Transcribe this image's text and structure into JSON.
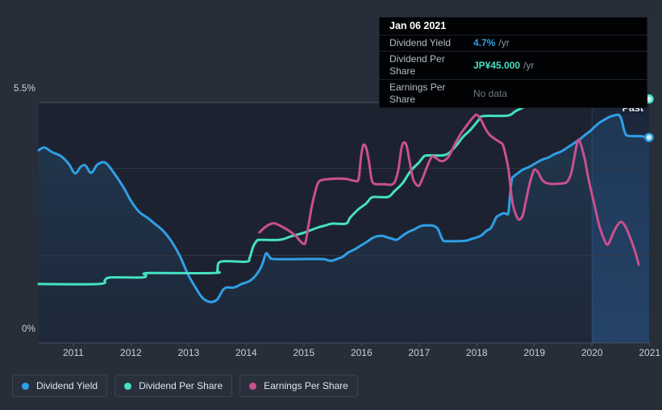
{
  "axis": {
    "y_max_label": "5.5%",
    "y_min_label": "0%",
    "x_tick_labels": [
      "2011",
      "2012",
      "2013",
      "2014",
      "2015",
      "2016",
      "2017",
      "2018",
      "2019",
      "2020",
      "2021"
    ]
  },
  "past_label": "Past",
  "header_tooltip": {
    "date": "Jan 06 2021",
    "rows": [
      {
        "label": "Dividend Yield",
        "value": "4.7%",
        "suffix": "/yr",
        "value_color": "#2f9fe6",
        "bold": true
      },
      {
        "label": "Dividend Per Share",
        "value": "JP¥45.000",
        "suffix": "/yr",
        "value_color": "#45e1c2",
        "bold": true
      },
      {
        "label": "Earnings Per Share",
        "value": "No data",
        "suffix": "",
        "value_color": "#70767e",
        "bold": false
      }
    ]
  },
  "legend": [
    {
      "label": "Dividend Yield",
      "color": "#2f9fe6"
    },
    {
      "label": "Dividend Per Share",
      "color": "#45e1c2"
    },
    {
      "label": "Earnings Per Share",
      "color": "#c9508f"
    }
  ],
  "colors": {
    "page_bg": "#272d39",
    "plot_bg": "#1d2230",
    "grid_minor": "#2f3644",
    "grid_major": "#4a5263",
    "axis_line": "#464e5e",
    "tick": "#4a5160",
    "tick_label": "#cbd0d8",
    "blue": "#2f9fe6",
    "teal": "#45e1c2",
    "pink": "#c9508f"
  },
  "chart_data": {
    "type": "line",
    "x_min": 2010.4,
    "x_max": 2020.99,
    "ylim": [
      0,
      5.5
    ],
    "y_unit": "percent (dividend yield axis)",
    "y_gridlines": [
      0,
      2,
      4,
      5.5
    ],
    "y_tick_labels": [
      "0%",
      "5.5%"
    ],
    "x_ticks": [
      2011,
      2012,
      2013,
      2014,
      2015,
      2016,
      2017,
      2018,
      2019,
      2020,
      2021
    ],
    "legend_position": "bottom-left",
    "past_from": 2020.0,
    "series": [
      {
        "name": "Dividend Yield",
        "color": "#2f9fe6",
        "fill": true,
        "end_marker": true,
        "points": [
          [
            2010.4,
            4.41
          ],
          [
            2010.5,
            4.47
          ],
          [
            2010.64,
            4.36
          ],
          [
            2010.78,
            4.28
          ],
          [
            2010.92,
            4.1
          ],
          [
            2011.03,
            3.88
          ],
          [
            2011.13,
            4.03
          ],
          [
            2011.21,
            4.06
          ],
          [
            2011.31,
            3.89
          ],
          [
            2011.42,
            4.08
          ],
          [
            2011.56,
            4.12
          ],
          [
            2011.73,
            3.84
          ],
          [
            2011.87,
            3.56
          ],
          [
            2012.01,
            3.23
          ],
          [
            2012.15,
            2.99
          ],
          [
            2012.29,
            2.86
          ],
          [
            2012.43,
            2.71
          ],
          [
            2012.57,
            2.55
          ],
          [
            2012.71,
            2.31
          ],
          [
            2012.85,
            1.99
          ],
          [
            2012.99,
            1.57
          ],
          [
            2013.13,
            1.25
          ],
          [
            2013.23,
            1.05
          ],
          [
            2013.32,
            0.96
          ],
          [
            2013.41,
            0.94
          ],
          [
            2013.5,
            1.0
          ],
          [
            2013.59,
            1.2
          ],
          [
            2013.66,
            1.27
          ],
          [
            2013.79,
            1.27
          ],
          [
            2013.92,
            1.35
          ],
          [
            2014.06,
            1.42
          ],
          [
            2014.18,
            1.57
          ],
          [
            2014.27,
            1.77
          ],
          [
            2014.33,
            2.01
          ],
          [
            2014.36,
            2.05
          ],
          [
            2014.41,
            1.96
          ],
          [
            2014.48,
            1.92
          ],
          [
            2014.9,
            1.92
          ],
          [
            2015.32,
            1.92
          ],
          [
            2015.42,
            1.89
          ],
          [
            2015.49,
            1.88
          ],
          [
            2015.57,
            1.92
          ],
          [
            2015.67,
            1.97
          ],
          [
            2015.77,
            2.07
          ],
          [
            2015.88,
            2.14
          ],
          [
            2015.99,
            2.23
          ],
          [
            2016.09,
            2.31
          ],
          [
            2016.19,
            2.4
          ],
          [
            2016.27,
            2.44
          ],
          [
            2016.36,
            2.45
          ],
          [
            2016.44,
            2.42
          ],
          [
            2016.54,
            2.38
          ],
          [
            2016.61,
            2.36
          ],
          [
            2016.68,
            2.42
          ],
          [
            2016.75,
            2.49
          ],
          [
            2016.83,
            2.55
          ],
          [
            2016.92,
            2.6
          ],
          [
            2017.0,
            2.66
          ],
          [
            2017.08,
            2.69
          ],
          [
            2017.17,
            2.69
          ],
          [
            2017.25,
            2.68
          ],
          [
            2017.32,
            2.62
          ],
          [
            2017.37,
            2.47
          ],
          [
            2017.41,
            2.36
          ],
          [
            2017.45,
            2.33
          ],
          [
            2017.63,
            2.33
          ],
          [
            2017.81,
            2.34
          ],
          [
            2017.91,
            2.38
          ],
          [
            2018.01,
            2.42
          ],
          [
            2018.09,
            2.47
          ],
          [
            2018.17,
            2.57
          ],
          [
            2018.24,
            2.62
          ],
          [
            2018.3,
            2.77
          ],
          [
            2018.34,
            2.88
          ],
          [
            2018.4,
            2.93
          ],
          [
            2018.47,
            2.97
          ],
          [
            2018.52,
            2.95
          ],
          [
            2018.55,
            2.99
          ],
          [
            2018.58,
            3.41
          ],
          [
            2018.61,
            3.75
          ],
          [
            2018.65,
            3.82
          ],
          [
            2018.71,
            3.88
          ],
          [
            2018.78,
            3.95
          ],
          [
            2018.85,
            3.99
          ],
          [
            2018.93,
            4.04
          ],
          [
            2019.03,
            4.12
          ],
          [
            2019.13,
            4.19
          ],
          [
            2019.24,
            4.24
          ],
          [
            2019.35,
            4.32
          ],
          [
            2019.45,
            4.37
          ],
          [
            2019.55,
            4.45
          ],
          [
            2019.63,
            4.52
          ],
          [
            2019.71,
            4.59
          ],
          [
            2019.8,
            4.67
          ],
          [
            2019.88,
            4.76
          ],
          [
            2019.97,
            4.85
          ],
          [
            2020.05,
            4.95
          ],
          [
            2020.13,
            5.04
          ],
          [
            2020.22,
            5.11
          ],
          [
            2020.3,
            5.17
          ],
          [
            2020.37,
            5.2
          ],
          [
            2020.44,
            5.22
          ],
          [
            2020.48,
            5.2
          ],
          [
            2020.52,
            5.07
          ],
          [
            2020.55,
            4.9
          ],
          [
            2020.58,
            4.78
          ],
          [
            2020.62,
            4.74
          ],
          [
            2020.73,
            4.73
          ],
          [
            2020.85,
            4.73
          ],
          [
            2020.99,
            4.7
          ]
        ]
      },
      {
        "name": "Dividend Per Share",
        "color": "#45e1c2",
        "fill": false,
        "end_marker": true,
        "points": [
          [
            2010.4,
            1.35
          ],
          [
            2011.44,
            1.35
          ],
          [
            2011.55,
            1.44
          ],
          [
            2011.65,
            1.5
          ],
          [
            2012.2,
            1.5
          ],
          [
            2012.26,
            1.55
          ],
          [
            2012.32,
            1.6
          ],
          [
            2013.44,
            1.6
          ],
          [
            2013.5,
            1.66
          ],
          [
            2013.56,
            1.86
          ],
          [
            2014.0,
            1.86
          ],
          [
            2014.06,
            1.95
          ],
          [
            2014.12,
            2.2
          ],
          [
            2014.18,
            2.33
          ],
          [
            2014.24,
            2.36
          ],
          [
            2014.58,
            2.36
          ],
          [
            2014.78,
            2.44
          ],
          [
            2014.92,
            2.49
          ],
          [
            2015.06,
            2.55
          ],
          [
            2015.24,
            2.64
          ],
          [
            2015.38,
            2.69
          ],
          [
            2015.49,
            2.73
          ],
          [
            2015.73,
            2.73
          ],
          [
            2015.8,
            2.86
          ],
          [
            2015.94,
            3.05
          ],
          [
            2016.08,
            3.19
          ],
          [
            2016.15,
            3.3
          ],
          [
            2016.22,
            3.34
          ],
          [
            2016.46,
            3.34
          ],
          [
            2016.57,
            3.47
          ],
          [
            2016.71,
            3.65
          ],
          [
            2016.85,
            3.93
          ],
          [
            2016.99,
            4.12
          ],
          [
            2017.06,
            4.23
          ],
          [
            2017.13,
            4.29
          ],
          [
            2017.45,
            4.3
          ],
          [
            2017.62,
            4.48
          ],
          [
            2017.76,
            4.71
          ],
          [
            2017.9,
            4.89
          ],
          [
            2018.04,
            5.11
          ],
          [
            2018.11,
            5.19
          ],
          [
            2018.53,
            5.2
          ],
          [
            2018.67,
            5.3
          ],
          [
            2018.81,
            5.39
          ],
          [
            2018.95,
            5.48
          ],
          [
            2019.09,
            5.55
          ],
          [
            2019.2,
            5.58
          ],
          [
            2020.99,
            5.58
          ]
        ]
      },
      {
        "name": "Earnings Per Share",
        "color": "#c9508f",
        "fill": false,
        "end_marker": false,
        "points": [
          [
            2014.23,
            2.53
          ],
          [
            2014.34,
            2.66
          ],
          [
            2014.44,
            2.73
          ],
          [
            2014.51,
            2.73
          ],
          [
            2014.65,
            2.64
          ],
          [
            2014.76,
            2.55
          ],
          [
            2014.86,
            2.45
          ],
          [
            2014.93,
            2.34
          ],
          [
            2014.99,
            2.27
          ],
          [
            2015.03,
            2.31
          ],
          [
            2015.08,
            2.68
          ],
          [
            2015.14,
            3.14
          ],
          [
            2015.2,
            3.47
          ],
          [
            2015.25,
            3.67
          ],
          [
            2015.32,
            3.73
          ],
          [
            2015.46,
            3.75
          ],
          [
            2015.6,
            3.76
          ],
          [
            2015.74,
            3.75
          ],
          [
            2015.88,
            3.71
          ],
          [
            2015.95,
            3.75
          ],
          [
            2015.99,
            4.24
          ],
          [
            2016.03,
            4.52
          ],
          [
            2016.08,
            4.47
          ],
          [
            2016.13,
            4.15
          ],
          [
            2016.17,
            3.78
          ],
          [
            2016.21,
            3.65
          ],
          [
            2016.3,
            3.63
          ],
          [
            2016.41,
            3.63
          ],
          [
            2016.51,
            3.62
          ],
          [
            2016.58,
            3.69
          ],
          [
            2016.64,
            3.97
          ],
          [
            2016.69,
            4.43
          ],
          [
            2016.73,
            4.58
          ],
          [
            2016.78,
            4.52
          ],
          [
            2016.83,
            4.19
          ],
          [
            2016.89,
            3.78
          ],
          [
            2016.94,
            3.64
          ],
          [
            2017.0,
            3.6
          ],
          [
            2017.07,
            3.8
          ],
          [
            2017.14,
            4.04
          ],
          [
            2017.22,
            4.26
          ],
          [
            2017.29,
            4.23
          ],
          [
            2017.36,
            4.17
          ],
          [
            2017.43,
            4.17
          ],
          [
            2017.52,
            4.28
          ],
          [
            2017.61,
            4.52
          ],
          [
            2017.72,
            4.78
          ],
          [
            2017.83,
            4.98
          ],
          [
            2017.93,
            5.15
          ],
          [
            2018.0,
            5.22
          ],
          [
            2018.07,
            5.11
          ],
          [
            2018.14,
            4.93
          ],
          [
            2018.21,
            4.78
          ],
          [
            2018.29,
            4.69
          ],
          [
            2018.38,
            4.61
          ],
          [
            2018.45,
            4.54
          ],
          [
            2018.5,
            4.3
          ],
          [
            2018.55,
            3.97
          ],
          [
            2018.59,
            3.51
          ],
          [
            2018.63,
            3.14
          ],
          [
            2018.69,
            2.9
          ],
          [
            2018.74,
            2.82
          ],
          [
            2018.8,
            2.93
          ],
          [
            2018.85,
            3.23
          ],
          [
            2018.91,
            3.6
          ],
          [
            2018.97,
            3.88
          ],
          [
            2019.01,
            3.97
          ],
          [
            2019.07,
            3.89
          ],
          [
            2019.12,
            3.76
          ],
          [
            2019.19,
            3.67
          ],
          [
            2019.28,
            3.64
          ],
          [
            2019.37,
            3.64
          ],
          [
            2019.49,
            3.65
          ],
          [
            2019.57,
            3.69
          ],
          [
            2019.64,
            3.89
          ],
          [
            2019.7,
            4.3
          ],
          [
            2019.74,
            4.56
          ],
          [
            2019.77,
            4.65
          ],
          [
            2019.81,
            4.52
          ],
          [
            2019.87,
            4.23
          ],
          [
            2019.92,
            3.88
          ],
          [
            2019.99,
            3.45
          ],
          [
            2020.06,
            3.05
          ],
          [
            2020.13,
            2.66
          ],
          [
            2020.2,
            2.4
          ],
          [
            2020.26,
            2.25
          ],
          [
            2020.31,
            2.33
          ],
          [
            2020.38,
            2.55
          ],
          [
            2020.45,
            2.71
          ],
          [
            2020.51,
            2.77
          ],
          [
            2020.58,
            2.66
          ],
          [
            2020.65,
            2.45
          ],
          [
            2020.72,
            2.2
          ],
          [
            2020.77,
            1.99
          ],
          [
            2020.81,
            1.79
          ]
        ]
      }
    ]
  }
}
